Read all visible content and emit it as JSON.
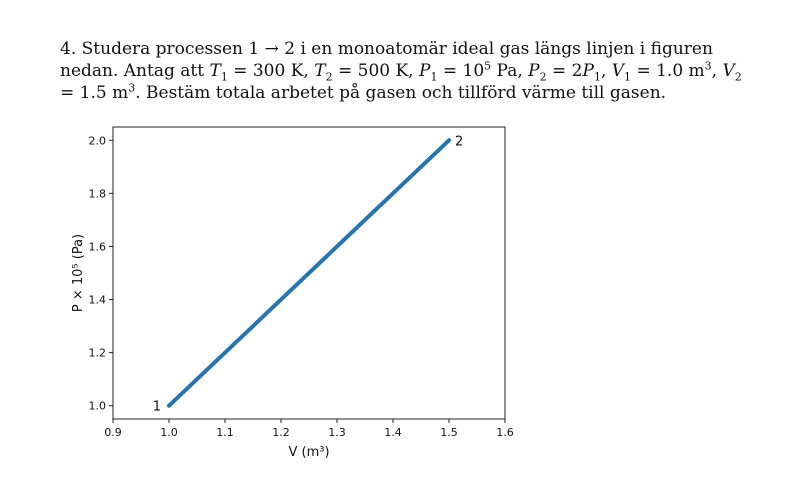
{
  "problem": {
    "number": "4.",
    "lead": "Studera processen 1 → 2 i en monoatomär ideal gas längs linjen i figuren nedan. Antag att",
    "t1": "= 300 K,",
    "t2": "= 500 K,",
    "p1": "= 10",
    "p1_exp": "5",
    "p1_unit": "Pa,",
    "p2": "= 2",
    "v1": "= 1.0 m",
    "v1_exp": "3",
    "v2": "= 1.5 m",
    "v2_exp": "3",
    "tail": ". Bestäm totala arbetet på gasen och tillförd värme till gasen."
  },
  "chart_data": {
    "type": "line",
    "x": [
      1.0,
      1.5
    ],
    "y": [
      1.0,
      2.0
    ],
    "point_labels": [
      "1",
      "2"
    ],
    "xlabel": "V (m³)",
    "ylabel": "P × 10⁵ (Pa)",
    "xlim": [
      0.9,
      1.6
    ],
    "ylim": [
      0.95,
      2.05
    ],
    "xticks": [
      "0.9",
      "1.0",
      "1.1",
      "1.2",
      "1.3",
      "1.4",
      "1.5",
      "1.6"
    ],
    "yticks": [
      "1.0",
      "1.2",
      "1.4",
      "1.6",
      "1.8",
      "2.0"
    ],
    "line_color": "#2774ae",
    "grid": false
  }
}
